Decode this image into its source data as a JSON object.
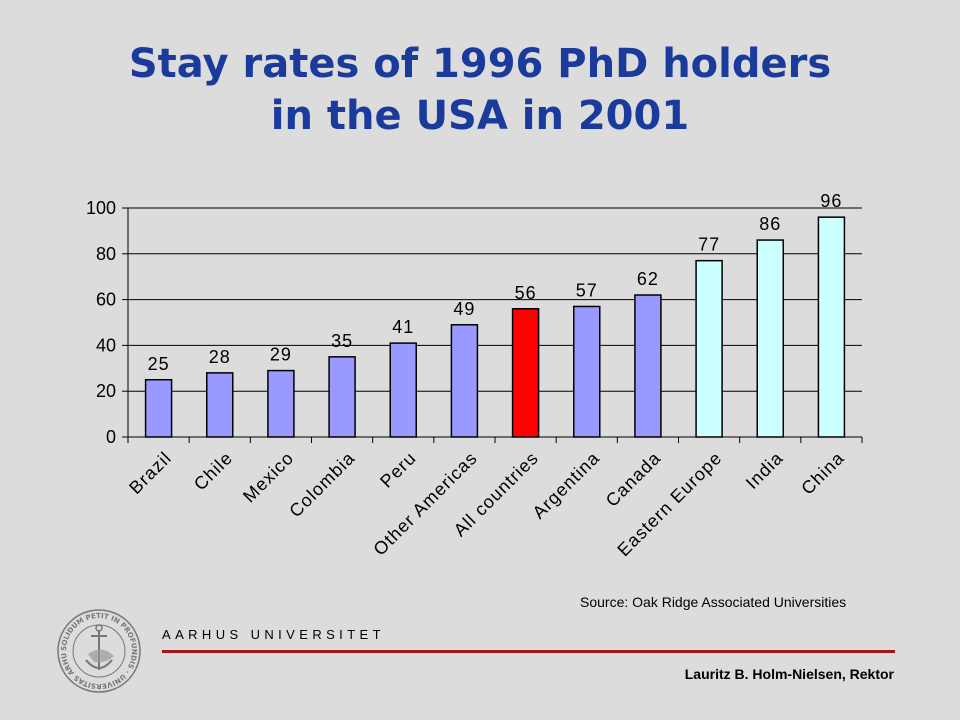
{
  "slide": {
    "title_line1": "Stay rates of 1996 PhD holders",
    "title_line2": "in the USA in 2001",
    "source": "Source: Oak Ridge Associated Universities",
    "university": "AARHUS UNIVERSITET",
    "presenter": "Lauritz B. Holm-Nielsen, Rektor",
    "seal_text": "SOLIDUM PETIT IN PROFUNDIS · UNIVERSITAS ARHUSIENSIS"
  },
  "colors": {
    "title": "#1a3a9c",
    "bar_default": "#9999ff",
    "bar_highlight": "#ff0000",
    "bar_asia_europe": "#ccffff",
    "rule": "#a01818"
  },
  "chart_data": {
    "type": "bar",
    "title": "Stay rates of 1996 PhD holders in the USA in 2001",
    "xlabel": "",
    "ylabel": "",
    "ylim": [
      0,
      100
    ],
    "yticks": [
      0,
      20,
      40,
      60,
      80,
      100
    ],
    "grid": true,
    "legend": "none",
    "categories": [
      "Brazil",
      "Chile",
      "Mexico",
      "Colombia",
      "Peru",
      "Other Americas",
      "All countries",
      "Argentina",
      "Canada",
      "Eastern Europe",
      "India",
      "China"
    ],
    "values": [
      25,
      28,
      29,
      35,
      41,
      49,
      56,
      57,
      62,
      77,
      86,
      96
    ],
    "bar_colors": [
      "#9999ff",
      "#9999ff",
      "#9999ff",
      "#9999ff",
      "#9999ff",
      "#9999ff",
      "#ff0000",
      "#9999ff",
      "#9999ff",
      "#ccffff",
      "#ccffff",
      "#ccffff"
    ]
  }
}
